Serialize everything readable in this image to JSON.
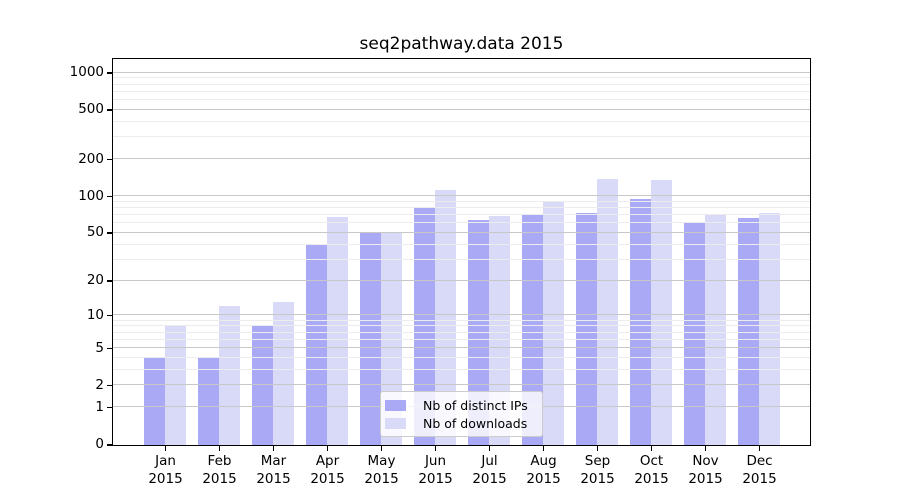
{
  "title": "seq2pathway.data 2015",
  "chart_data": {
    "type": "bar",
    "title": "seq2pathway.data 2015",
    "categories": [
      "Jan",
      "Feb",
      "Mar",
      "Apr",
      "May",
      "Jun",
      "Jul",
      "Aug",
      "Sep",
      "Oct",
      "Nov",
      "Dec"
    ],
    "category_year": "2015",
    "series": [
      {
        "name": "Nb of distinct IPs",
        "color": "#a9a9f5",
        "values": [
          4,
          4,
          8,
          40,
          50,
          80,
          64,
          72,
          73,
          94,
          61,
          66
        ]
      },
      {
        "name": "Nb of downloads",
        "color": "#d9d9f8",
        "values": [
          8,
          12,
          13,
          67,
          51,
          111,
          69,
          90,
          137,
          134,
          71,
          73
        ]
      }
    ],
    "xlabel": "",
    "ylabel": "",
    "y_ticks": [
      0,
      1,
      2,
      5,
      10,
      20,
      50,
      100,
      200,
      500,
      1000
    ],
    "y_minor_ticks": [
      3,
      4,
      6,
      7,
      8,
      9,
      30,
      40,
      60,
      70,
      80,
      90,
      300,
      400,
      600,
      700,
      800,
      900
    ],
    "ylim": [
      0,
      1276
    ],
    "scale": "log1p",
    "grid": true,
    "legend_position": "lower center"
  },
  "colors": {
    "bar_distinct_ips": "#a9a9f5",
    "bar_downloads": "#d9d9f8",
    "grid_major": "#c8c8c8",
    "grid_minor": "#ececec",
    "axis": "#000000",
    "legend_border": "#cccccc",
    "background": "#ffffff"
  }
}
